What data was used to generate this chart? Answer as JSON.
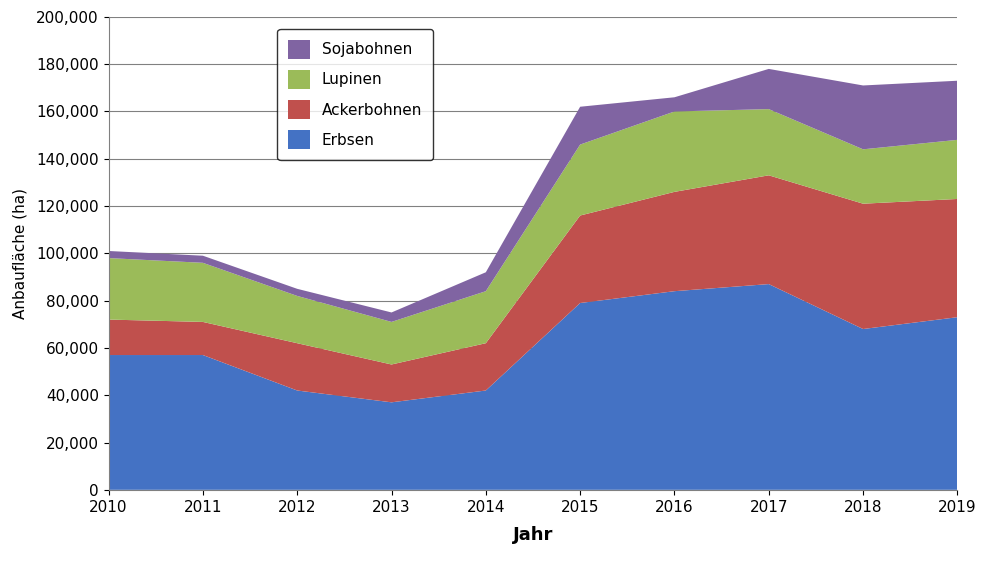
{
  "years": [
    2010,
    2011,
    2012,
    2013,
    2014,
    2015,
    2016,
    2017,
    2018,
    2019
  ],
  "erbsen": [
    57000,
    57000,
    42000,
    37000,
    42000,
    79000,
    84000,
    87000,
    68000,
    73000
  ],
  "ackerbohnen": [
    15000,
    14000,
    20000,
    16000,
    20000,
    37000,
    42000,
    46000,
    53000,
    50000
  ],
  "lupinen": [
    26000,
    25000,
    20000,
    18000,
    22000,
    30000,
    34000,
    28000,
    23000,
    25000
  ],
  "sojabohnen": [
    3000,
    3000,
    3000,
    4000,
    8000,
    16000,
    6000,
    17000,
    27000,
    25000
  ],
  "colors": {
    "erbsen": "#4472C4",
    "ackerbohnen": "#C0504D",
    "lupinen": "#9BBB59",
    "sojabohnen": "#8064A2"
  },
  "labels": {
    "erbsen": "Erbsen",
    "ackerbohnen": "Ackerbohnen",
    "lupinen": "Lupinen",
    "sojabohnen": "Sojabohnen"
  },
  "ylabel": "Anbaufläche (ha)",
  "xlabel": "Jahr",
  "ylim": [
    0,
    200000
  ],
  "yticks": [
    0,
    20000,
    40000,
    60000,
    80000,
    100000,
    120000,
    140000,
    160000,
    180000,
    200000
  ],
  "background_color": "#ffffff",
  "grid_color": "#808080"
}
